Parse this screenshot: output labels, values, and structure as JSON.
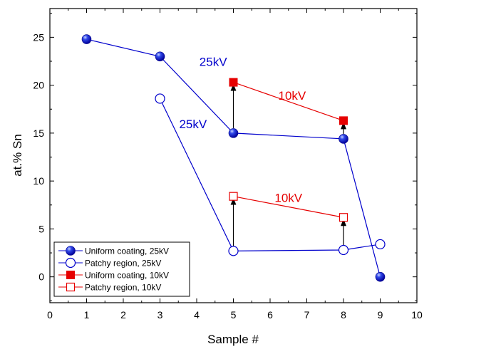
{
  "chart_data": {
    "type": "scatter",
    "xlabel": "Sample #",
    "ylabel": "at.% Sn",
    "xlim": [
      0,
      10
    ],
    "ylim": [
      -2.7,
      28.0
    ],
    "xticks": [
      0,
      1,
      2,
      3,
      4,
      5,
      6,
      7,
      8,
      9,
      10
    ],
    "yticks": [
      0,
      5,
      10,
      15,
      20,
      25
    ],
    "grid": false,
    "legend_position": "bottom-left",
    "series": [
      {
        "name": "Uniform coating, 25kV",
        "color": "#0000cc",
        "marker": "sphere",
        "points": [
          {
            "x": 1,
            "y": 24.8
          },
          {
            "x": 3,
            "y": 23.0
          },
          {
            "x": 5,
            "y": 15.0
          },
          {
            "x": 8,
            "y": 14.4
          },
          {
            "x": 9,
            "y": 0.0
          }
        ]
      },
      {
        "name": "Patchy region, 25kV",
        "color": "#0000cc",
        "marker": "open-circle",
        "points": [
          {
            "x": 3,
            "y": 18.6
          },
          {
            "x": 5,
            "y": 2.7
          },
          {
            "x": 8,
            "y": 2.8
          },
          {
            "x": 9,
            "y": 3.4
          }
        ]
      },
      {
        "name": "Uniform coating, 10kV",
        "color": "#e60000",
        "marker": "filled-square",
        "points": [
          {
            "x": 5,
            "y": 20.3
          },
          {
            "x": 8,
            "y": 16.3
          }
        ]
      },
      {
        "name": "Patchy region, 10kV",
        "color": "#e60000",
        "marker": "open-square",
        "points": [
          {
            "x": 5,
            "y": 8.4
          },
          {
            "x": 8,
            "y": 6.2
          }
        ]
      }
    ],
    "annotations": [
      {
        "text": "25kV",
        "color": "#0000cc",
        "x": 4.45,
        "y": 22.0
      },
      {
        "text": "25kV",
        "color": "#0000cc",
        "x": 3.9,
        "y": 15.5
      },
      {
        "text": "10kV",
        "color": "#e60000",
        "x": 6.6,
        "y": 18.5
      },
      {
        "text": "10kV",
        "color": "#e60000",
        "x": 6.5,
        "y": 7.8
      }
    ],
    "arrows": [
      {
        "x": 5,
        "from": 15.0,
        "to": 20.3
      },
      {
        "x": 8,
        "from": 14.4,
        "to": 16.3
      },
      {
        "x": 5,
        "from": 2.7,
        "to": 8.4
      },
      {
        "x": 8,
        "from": 2.8,
        "to": 6.2
      }
    ]
  }
}
